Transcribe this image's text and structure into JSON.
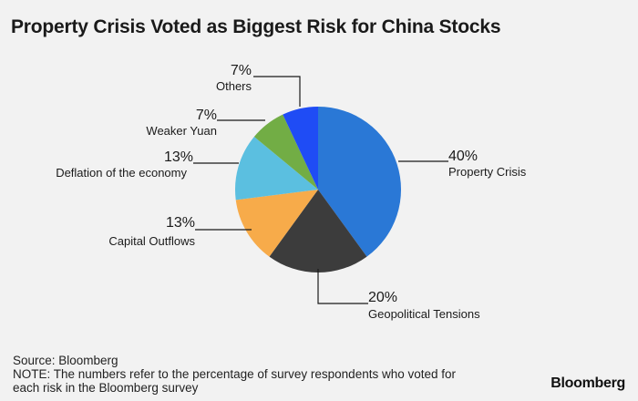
{
  "title": "Property Crisis Voted as Biggest Risk for China Stocks",
  "chart_data": {
    "type": "pie",
    "title": "Property Crisis Voted as Biggest Risk for China Stocks",
    "unit": "%",
    "start_angle_deg": 0,
    "direction": "clockwise",
    "slices": [
      {
        "label": "Property Crisis",
        "value": 40,
        "value_label": "40%",
        "color": "#2a78d6"
      },
      {
        "label": "Geopolitical Tensions",
        "value": 20,
        "value_label": "20%",
        "color": "#3c3c3c"
      },
      {
        "label": "Capital Outflows",
        "value": 13,
        "value_label": "13%",
        "color": "#f7ab4a"
      },
      {
        "label": "Deflation of the economy",
        "value": 13,
        "value_label": "13%",
        "color": "#5bbfe0"
      },
      {
        "label": "Weaker Yuan",
        "value": 7,
        "value_label": "7%",
        "color": "#72ad45"
      },
      {
        "label": "Others",
        "value": 7,
        "value_label": "7%",
        "color": "#1f4cf5"
      }
    ]
  },
  "footer": {
    "source": "Source: Bloomberg",
    "note_line1": "NOTE: The numbers refer to the percentage of survey respondents who voted for",
    "note_line2": "each risk in the Bloomberg survey"
  },
  "brand": "Bloomberg"
}
